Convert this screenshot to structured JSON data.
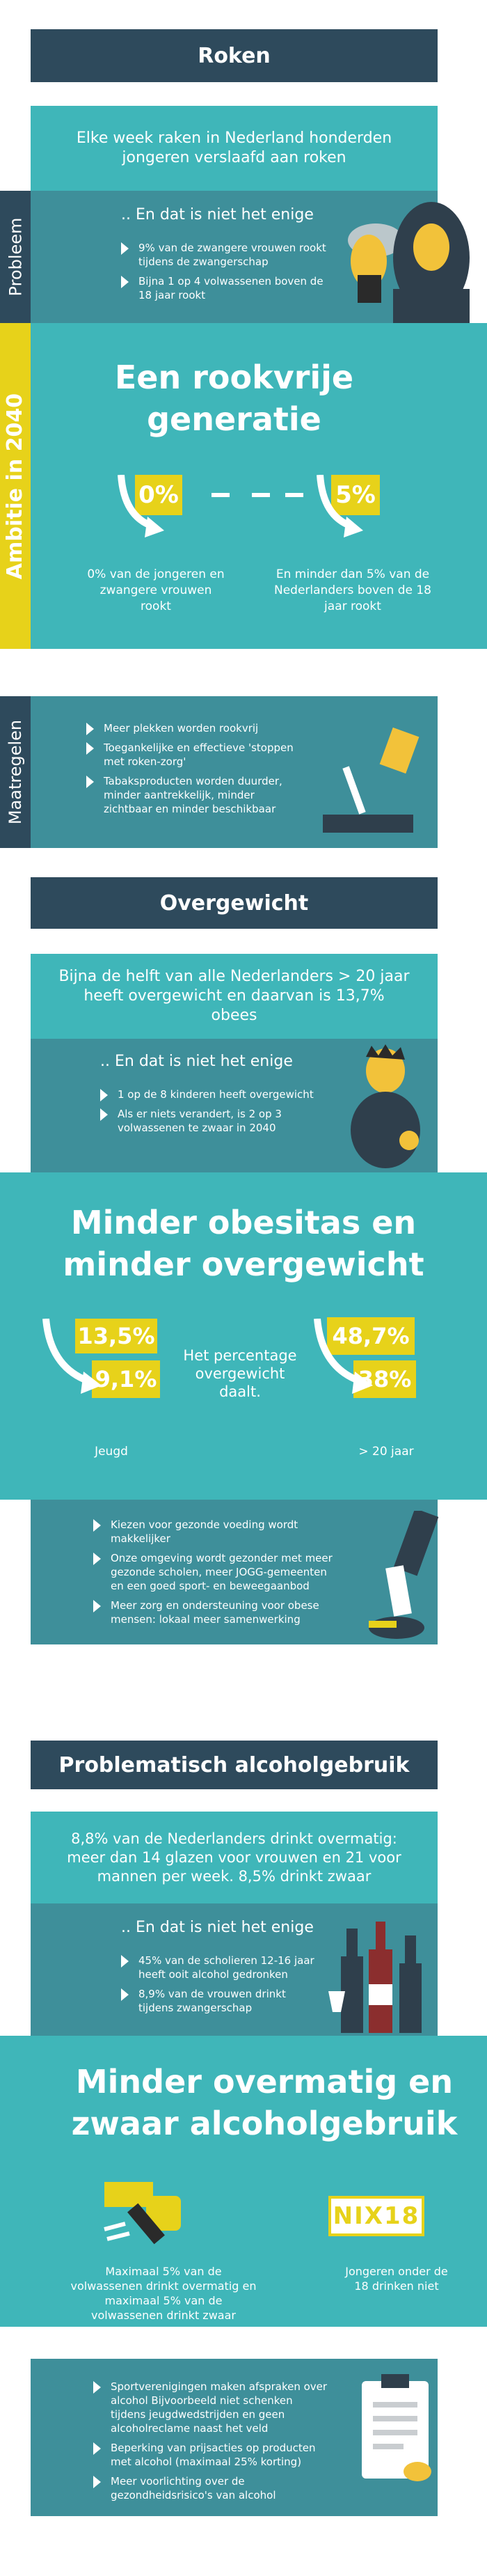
{
  "roken": {
    "header": "Roken",
    "intro": "Elke week raken in Nederland honderden jongeren verslaafd aan roken",
    "probleem": {
      "label": "Probleem",
      "lead": ".. En dat is niet het enige",
      "bullets": [
        "9% van de zwangere vrouwen rookt tijdens de zwangerschap",
        "Bijna 1 op 4 volwassenen boven de 18 jaar rookt"
      ]
    },
    "ambitie": {
      "label": "Ambitie in 2040",
      "title_line1": "Een rookvrije",
      "title_line2": "generatie",
      "left_value": "0%",
      "right_value": "5%",
      "left_caption": "0% van de jongeren en zwangere vrouwen rookt",
      "right_caption": "En minder dan 5% van de Nederlanders boven de 18 jaar rookt"
    },
    "maatregelen": {
      "label": "Maatregelen",
      "bullets": [
        "Meer plekken worden rookvrij",
        "Toegankelijke en effectieve 'stoppen met roken-zorg'",
        "Tabaksproducten worden duurder, minder aantrekkelijk, minder zichtbaar en minder beschikbaar"
      ]
    }
  },
  "overgewicht": {
    "header": "Overgewicht",
    "intro": "Bijna de helft van alle Nederlanders > 20 jaar heeft overgewicht en daarvan is 13,7% obees",
    "lead": ".. En dat is niet het enige",
    "bullets": [
      "1 op de 8 kinderen heeft overgewicht",
      "Als er niets verandert, is 2 op 3 volwassenen te zwaar in 2040"
    ],
    "title_line1": "Minder obesitas  en",
    "title_line2": "minder overgewicht",
    "jeugd_from": "13,5%",
    "jeugd_to": "9,1%",
    "adult_from": "48,7%",
    "adult_to": "38%",
    "center_text": "Het percentage overgewicht daalt.",
    "jeugd_label": "Jeugd",
    "adult_label": "> 20 jaar",
    "maatregelen": [
      "Kiezen voor gezonde voeding wordt makkelijker",
      "Onze omgeving wordt gezonder met meer gezonde scholen, meer JOGG-gemeenten en een goed sport- en beweegaanbod",
      "Meer zorg en ondersteuning voor obese mensen: lokaal meer samenwerking"
    ]
  },
  "alcohol": {
    "header": "Problematisch alcoholgebruik",
    "intro": "8,8% van de Nederlanders drinkt overmatig: meer dan 14 glazen voor vrouwen en 21 voor mannen per week. 8,5% drinkt zwaar",
    "lead": ".. En dat is niet het enige",
    "bullets": [
      "45% van de scholieren 12-16 jaar heeft ooit alcohol gedronken",
      "8,9% van de vrouwen drinkt tijdens zwangerschap"
    ],
    "title_line1": "Minder overmatig en",
    "title_line2": "zwaar alcoholgebruik",
    "nix": "NIX18",
    "left_caption": "Maximaal 5% van de volwassenen drinkt overmatig en maximaal 5% van de volwassenen drinkt zwaar",
    "right_caption": "Jongeren onder de 18 drinken niet",
    "maatregelen": [
      "Sportverenigingen maken afspraken over alcohol Bijvoorbeeld niet schenken tijdens jeugdwedstrijden en geen alcoholreclame naast het veld",
      "Beperking van prijsacties op producten met alcohol (maximaal 25% korting)",
      "Meer voorlichting over de gezondheidsrisico's van alcohol"
    ]
  },
  "colors": {
    "navy": "#2e4a5c",
    "teal": "#3fb6b9",
    "dark_teal": "#3e8f9a",
    "yellow": "#e7d21a"
  }
}
